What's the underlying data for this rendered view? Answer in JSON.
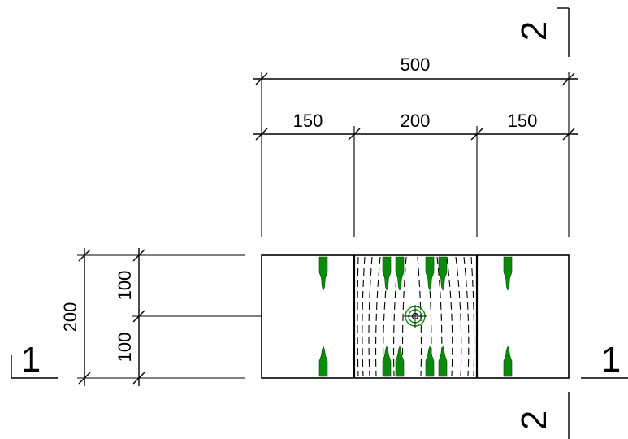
{
  "dimensions": {
    "overall_width": "500",
    "left_segment": "150",
    "middle_segment": "200",
    "right_segment": "150",
    "overall_height": "200",
    "upper_segment": "100",
    "lower_segment": "100"
  },
  "section_marks": {
    "top_right": "2",
    "bottom_right": "2",
    "left": "1",
    "right": "1"
  },
  "colors": {
    "line": "#000000",
    "anchor": "#0b8a0b"
  }
}
